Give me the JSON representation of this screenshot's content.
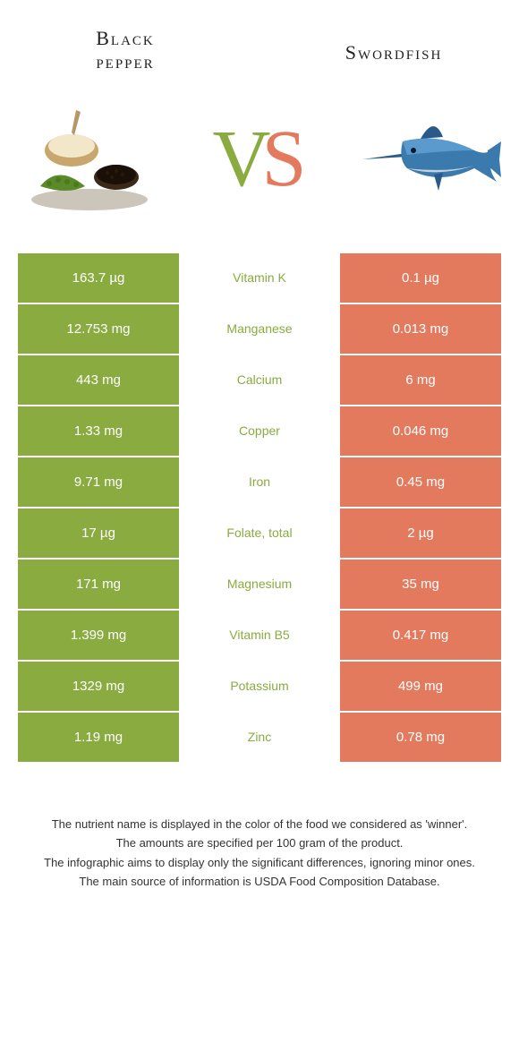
{
  "header": {
    "left_title_line1": "Black",
    "left_title_line2": "pepper",
    "right_title": "Swordfish",
    "vs_v": "V",
    "vs_s": "S"
  },
  "colors": {
    "left": "#8aab3f",
    "right": "#e37a5d",
    "bg": "#ffffff",
    "text": "#333333"
  },
  "rows": [
    {
      "left": "163.7 µg",
      "mid": "Vitamin K",
      "right": "0.1 µg",
      "mid_color": "#8aab3f"
    },
    {
      "left": "12.753 mg",
      "mid": "Manganese",
      "right": "0.013 mg",
      "mid_color": "#8aab3f"
    },
    {
      "left": "443 mg",
      "mid": "Calcium",
      "right": "6 mg",
      "mid_color": "#8aab3f"
    },
    {
      "left": "1.33 mg",
      "mid": "Copper",
      "right": "0.046 mg",
      "mid_color": "#8aab3f"
    },
    {
      "left": "9.71 mg",
      "mid": "Iron",
      "right": "0.45 mg",
      "mid_color": "#8aab3f"
    },
    {
      "left": "17 µg",
      "mid": "Folate, total",
      "right": "2 µg",
      "mid_color": "#8aab3f"
    },
    {
      "left": "171 mg",
      "mid": "Magnesium",
      "right": "35 mg",
      "mid_color": "#8aab3f"
    },
    {
      "left": "1.399 mg",
      "mid": "Vitamin B5",
      "right": "0.417 mg",
      "mid_color": "#8aab3f"
    },
    {
      "left": "1329 mg",
      "mid": "Potassium",
      "right": "499 mg",
      "mid_color": "#8aab3f"
    },
    {
      "left": "1.19 mg",
      "mid": "Zinc",
      "right": "0.78 mg",
      "mid_color": "#8aab3f"
    }
  ],
  "footer": {
    "line1": "The nutrient name is displayed in the color of the food we considered as 'winner'.",
    "line2": "The amounts are specified per 100 gram of the product.",
    "line3": "The infographic aims to display only the significant differences, ignoring minor ones.",
    "line4": "The main source of information is USDA Food Composition Database."
  }
}
